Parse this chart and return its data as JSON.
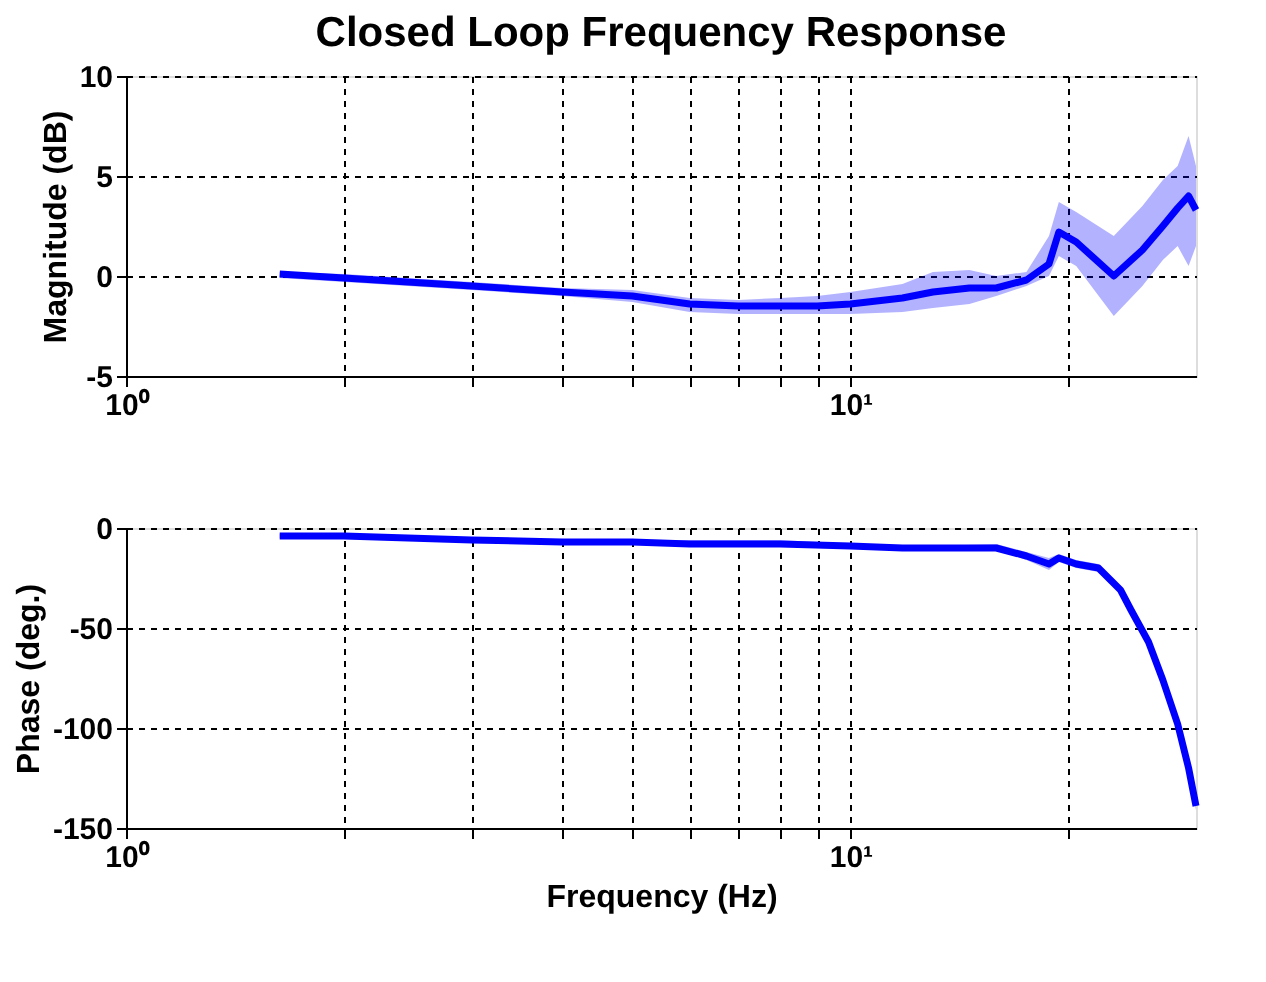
{
  "chart_data": [
    {
      "type": "line",
      "title": "Closed Loop Frequency Response",
      "ylabel": "Magnitude (dB)",
      "log": "x",
      "grid": true,
      "xlim": [
        1,
        30
      ],
      "xticks": [
        {
          "value": 1,
          "label": "10⁰"
        },
        {
          "value": 2,
          "label": null
        },
        {
          "value": 3,
          "label": null
        },
        {
          "value": 4,
          "label": null
        },
        {
          "value": 5,
          "label": null
        },
        {
          "value": 6,
          "label": null
        },
        {
          "value": 7,
          "label": null
        },
        {
          "value": 8,
          "label": null
        },
        {
          "value": 9,
          "label": null
        },
        {
          "value": 10,
          "label": "10¹"
        },
        {
          "value": 20,
          "label": null
        }
      ],
      "ylim": [
        -5,
        10
      ],
      "yticks": [
        -5,
        0,
        5,
        10
      ],
      "x": [
        1.63,
        2,
        3,
        4,
        5,
        6,
        7,
        8,
        9,
        10,
        11.8,
        13,
        14.6,
        15.9,
        17.5,
        18.8,
        19.4,
        20.5,
        23.1,
        25.3,
        27.0,
        28.3,
        29.3,
        30
      ],
      "series": [
        {
          "color": "#0000ff",
          "values": [
            0.1,
            -0.1,
            -0.5,
            -0.8,
            -1.0,
            -1.4,
            -1.5,
            -1.5,
            -1.5,
            -1.4,
            -1.1,
            -0.8,
            -0.6,
            -0.6,
            -0.2,
            0.6,
            2.2,
            1.7,
            0.0,
            1.3,
            2.5,
            3.4,
            4.0,
            3.3
          ],
          "lower": [
            -0.1,
            -0.3,
            -0.7,
            -1.0,
            -1.3,
            -1.8,
            -1.9,
            -1.9,
            -1.9,
            -1.9,
            -1.8,
            -1.6,
            -1.4,
            -1.0,
            -0.5,
            0.0,
            1.0,
            0.5,
            -2.0,
            -0.5,
            0.8,
            1.5,
            0.5,
            1.5
          ],
          "upper": [
            0.2,
            0.1,
            -0.3,
            -0.6,
            -0.7,
            -1.1,
            -1.2,
            -1.1,
            -1.0,
            -0.8,
            -0.4,
            0.2,
            0.3,
            0.0,
            0.2,
            2.0,
            3.7,
            3.2,
            2.0,
            3.5,
            4.8,
            5.5,
            7.0,
            5.5
          ]
        }
      ]
    },
    {
      "type": "line",
      "xlabel": "Frequency (Hz)",
      "ylabel": "Phase (deg.)",
      "log": "x",
      "grid": true,
      "xlim": [
        1,
        30
      ],
      "xticks": [
        {
          "value": 1,
          "label": "10⁰"
        },
        {
          "value": 2,
          "label": null
        },
        {
          "value": 3,
          "label": null
        },
        {
          "value": 4,
          "label": null
        },
        {
          "value": 5,
          "label": null
        },
        {
          "value": 6,
          "label": null
        },
        {
          "value": 7,
          "label": null
        },
        {
          "value": 8,
          "label": null
        },
        {
          "value": 9,
          "label": null
        },
        {
          "value": 10,
          "label": "10¹"
        },
        {
          "value": 20,
          "label": null
        }
      ],
      "ylim": [
        -150,
        0
      ],
      "yticks": [
        -150,
        -100,
        -50,
        0
      ],
      "x": [
        1.63,
        2,
        3,
        4,
        5,
        6,
        8,
        10,
        11.8,
        13,
        15.9,
        17.5,
        18.8,
        19.4,
        20.5,
        22,
        23.6,
        24.4,
        25.8,
        27.0,
        28.3,
        29.3,
        30
      ],
      "series": [
        {
          "color": "#0000ff",
          "values": [
            -4,
            -4,
            -6,
            -7,
            -7,
            -8,
            -8,
            -9,
            -10,
            -10,
            -10,
            -14,
            -18,
            -15,
            -18,
            -20,
            -31,
            -41,
            -57,
            -76,
            -98,
            -120,
            -139
          ],
          "lower": [
            -5,
            -5,
            -7,
            -8,
            -8,
            -9,
            -9,
            -10,
            -11,
            -11,
            -11,
            -16,
            -21,
            -17,
            -20,
            -22,
            -33,
            -43,
            -59,
            -78,
            -100,
            -122,
            -141
          ],
          "upper": [
            -3,
            -3,
            -5,
            -6,
            -6,
            -6,
            -6,
            -8,
            -9,
            -9,
            -8,
            -12,
            -15,
            -13,
            -16,
            -18,
            -29,
            -39,
            -55,
            -74,
            -96,
            -118,
            -137
          ]
        }
      ]
    }
  ]
}
